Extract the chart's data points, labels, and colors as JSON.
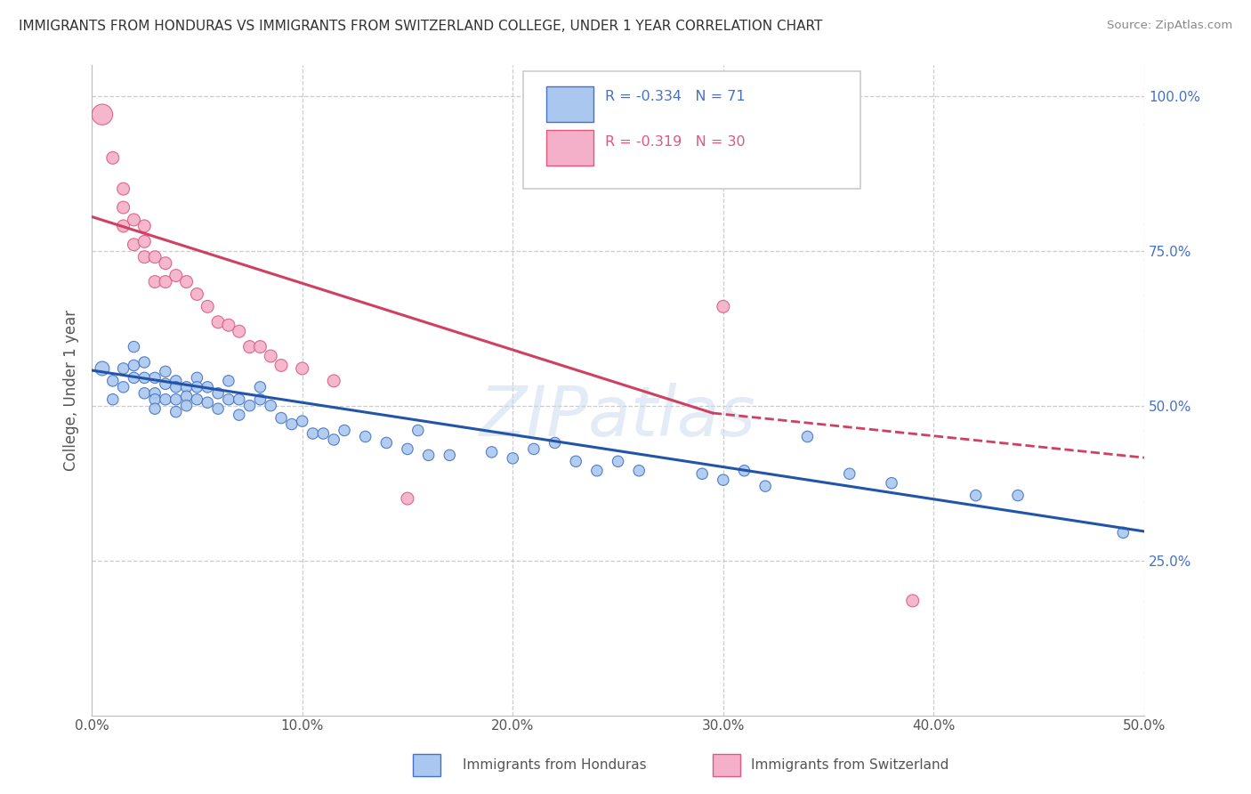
{
  "title": "IMMIGRANTS FROM HONDURAS VS IMMIGRANTS FROM SWITZERLAND COLLEGE, UNDER 1 YEAR CORRELATION CHART",
  "source": "Source: ZipAtlas.com",
  "ylabel": "College, Under 1 year",
  "xlim": [
    0.0,
    0.5
  ],
  "ylim": [
    0.0,
    1.05
  ],
  "xtick_labels": [
    "0.0%",
    "",
    "",
    "",
    "",
    "",
    "",
    "",
    "",
    "",
    "10.0%",
    "",
    "",
    "",
    "",
    "",
    "",
    "",
    "",
    "",
    "20.0%",
    "",
    "",
    "",
    "",
    "",
    "",
    "",
    "",
    "",
    "30.0%",
    "",
    "",
    "",
    "",
    "",
    "",
    "",
    "",
    "",
    "40.0%",
    "",
    "",
    "",
    "",
    "",
    "",
    "",
    "",
    "",
    "50.0%"
  ],
  "xtick_vals": [
    0.0,
    0.01,
    0.02,
    0.03,
    0.04,
    0.05,
    0.06,
    0.07,
    0.08,
    0.09,
    0.1,
    0.11,
    0.12,
    0.13,
    0.14,
    0.15,
    0.16,
    0.17,
    0.18,
    0.19,
    0.2,
    0.21,
    0.22,
    0.23,
    0.24,
    0.25,
    0.26,
    0.27,
    0.28,
    0.29,
    0.3,
    0.31,
    0.32,
    0.33,
    0.34,
    0.35,
    0.36,
    0.37,
    0.38,
    0.39,
    0.4,
    0.41,
    0.42,
    0.43,
    0.44,
    0.45,
    0.46,
    0.47,
    0.48,
    0.49,
    0.5
  ],
  "xtick_major_vals": [
    0.0,
    0.1,
    0.2,
    0.3,
    0.4,
    0.5
  ],
  "xtick_major_labels": [
    "0.0%",
    "10.0%",
    "20.0%",
    "30.0%",
    "40.0%",
    "50.0%"
  ],
  "ytick_vals": [
    0.25,
    0.5,
    0.75,
    1.0
  ],
  "ytick_labels": [
    "25.0%",
    "50.0%",
    "75.0%",
    "100.0%"
  ],
  "legend_r_blue": "-0.334",
  "legend_n_blue": "71",
  "legend_r_pink": "-0.319",
  "legend_n_pink": "30",
  "blue_fill": "#aac8ef",
  "blue_edge": "#4472c4",
  "pink_fill": "#f4b0c8",
  "pink_edge": "#e05880",
  "blue_line_color": "#2255aa",
  "pink_line_color": "#d04060",
  "watermark": "ZIPatlas",
  "blue_scatter_x": [
    0.005,
    0.01,
    0.01,
    0.015,
    0.015,
    0.02,
    0.02,
    0.02,
    0.025,
    0.025,
    0.025,
    0.03,
    0.03,
    0.03,
    0.03,
    0.035,
    0.035,
    0.035,
    0.04,
    0.04,
    0.04,
    0.04,
    0.045,
    0.045,
    0.045,
    0.05,
    0.05,
    0.05,
    0.055,
    0.055,
    0.06,
    0.06,
    0.065,
    0.065,
    0.07,
    0.07,
    0.075,
    0.08,
    0.08,
    0.085,
    0.09,
    0.095,
    0.1,
    0.105,
    0.11,
    0.115,
    0.12,
    0.13,
    0.14,
    0.15,
    0.155,
    0.16,
    0.17,
    0.19,
    0.2,
    0.21,
    0.22,
    0.23,
    0.24,
    0.25,
    0.26,
    0.29,
    0.3,
    0.31,
    0.32,
    0.34,
    0.36,
    0.38,
    0.42,
    0.44,
    0.49
  ],
  "blue_scatter_y": [
    0.56,
    0.54,
    0.51,
    0.56,
    0.53,
    0.595,
    0.565,
    0.545,
    0.57,
    0.545,
    0.52,
    0.545,
    0.52,
    0.51,
    0.495,
    0.555,
    0.535,
    0.51,
    0.54,
    0.53,
    0.51,
    0.49,
    0.53,
    0.515,
    0.5,
    0.545,
    0.53,
    0.51,
    0.53,
    0.505,
    0.52,
    0.495,
    0.54,
    0.51,
    0.51,
    0.485,
    0.5,
    0.53,
    0.51,
    0.5,
    0.48,
    0.47,
    0.475,
    0.455,
    0.455,
    0.445,
    0.46,
    0.45,
    0.44,
    0.43,
    0.46,
    0.42,
    0.42,
    0.425,
    0.415,
    0.43,
    0.44,
    0.41,
    0.395,
    0.41,
    0.395,
    0.39,
    0.38,
    0.395,
    0.37,
    0.45,
    0.39,
    0.375,
    0.355,
    0.355,
    0.295
  ],
  "blue_scatter_sizes": [
    130,
    80,
    80,
    80,
    80,
    80,
    80,
    80,
    80,
    80,
    80,
    80,
    80,
    80,
    80,
    80,
    80,
    80,
    80,
    80,
    80,
    80,
    80,
    80,
    80,
    80,
    80,
    80,
    80,
    80,
    80,
    80,
    80,
    80,
    80,
    80,
    80,
    80,
    80,
    80,
    80,
    80,
    80,
    80,
    80,
    80,
    80,
    80,
    80,
    80,
    80,
    80,
    80,
    80,
    80,
    80,
    80,
    80,
    80,
    80,
    80,
    80,
    80,
    80,
    80,
    80,
    80,
    80,
    80,
    80,
    80
  ],
  "pink_scatter_x": [
    0.005,
    0.01,
    0.015,
    0.015,
    0.015,
    0.02,
    0.02,
    0.025,
    0.025,
    0.025,
    0.03,
    0.03,
    0.035,
    0.035,
    0.04,
    0.045,
    0.05,
    0.055,
    0.06,
    0.065,
    0.07,
    0.075,
    0.08,
    0.085,
    0.09,
    0.1,
    0.115,
    0.15,
    0.3,
    0.39
  ],
  "pink_scatter_y": [
    0.97,
    0.9,
    0.85,
    0.82,
    0.79,
    0.8,
    0.76,
    0.79,
    0.765,
    0.74,
    0.74,
    0.7,
    0.73,
    0.7,
    0.71,
    0.7,
    0.68,
    0.66,
    0.635,
    0.63,
    0.62,
    0.595,
    0.595,
    0.58,
    0.565,
    0.56,
    0.54,
    0.35,
    0.66,
    0.185
  ],
  "pink_scatter_sizes": [
    280,
    100,
    100,
    100,
    100,
    100,
    100,
    100,
    100,
    100,
    100,
    100,
    100,
    100,
    100,
    100,
    100,
    100,
    100,
    100,
    100,
    100,
    100,
    100,
    100,
    100,
    100,
    100,
    100,
    100
  ],
  "blue_trendline": [
    0.0,
    0.557,
    0.5,
    0.297
  ],
  "pink_trendline_solid": [
    0.0,
    0.805,
    0.295,
    0.488
  ],
  "pink_trendline_dash": [
    0.295,
    0.488,
    0.5,
    0.416
  ]
}
